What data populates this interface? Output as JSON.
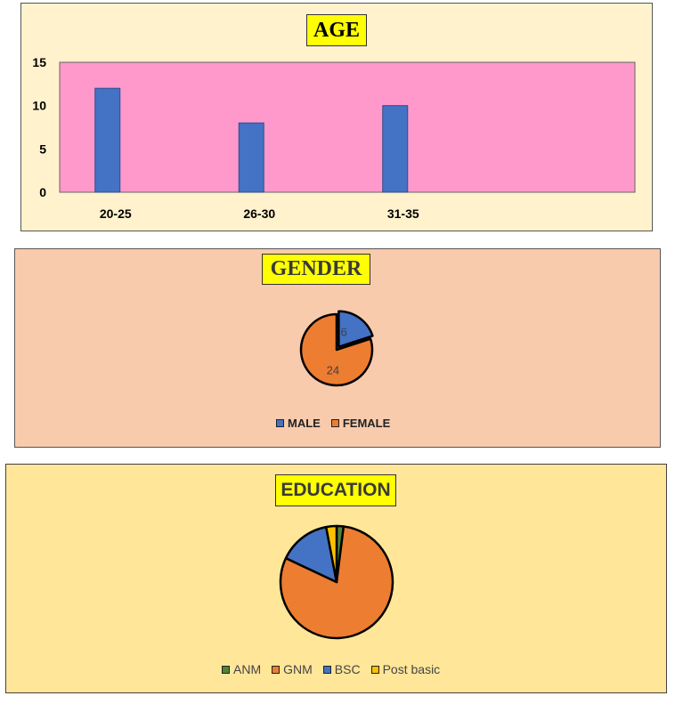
{
  "colors": {
    "blue": "#4472c4",
    "orange": "#ed7d31",
    "green": "#548235",
    "yellow": "#ffc000",
    "plot_bg": "#ff99cc"
  },
  "chart_data": [
    {
      "type": "bar",
      "title": "AGE",
      "categories": [
        "20-25",
        "26-30",
        "31-35"
      ],
      "values": [
        12,
        8,
        10
      ],
      "ylim": [
        0,
        15
      ],
      "yticks": [
        0,
        5,
        10,
        15
      ],
      "xlabel": "",
      "ylabel": "",
      "grid": false
    },
    {
      "type": "pie",
      "title": "GENDER",
      "labels": [
        "MALE",
        "FEMALE"
      ],
      "values": [
        6,
        24
      ],
      "data_labels": [
        "6",
        "24"
      ],
      "legend_position": "bottom"
    },
    {
      "type": "pie",
      "title": "EDUCATION",
      "labels": [
        "ANM",
        "GNM",
        "BSC",
        "Post basic"
      ],
      "values": [
        2,
        80,
        15,
        3
      ],
      "legend_position": "bottom"
    }
  ]
}
